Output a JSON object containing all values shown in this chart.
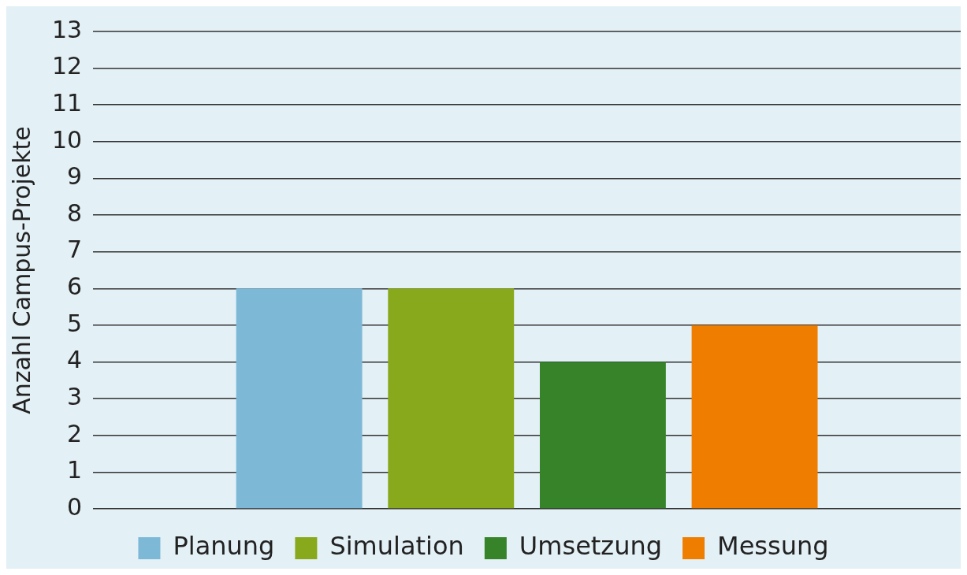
{
  "chart_data": {
    "type": "bar",
    "ylabel": "Anzahl Campus-Projekte",
    "categories": [
      null
    ],
    "series": [
      {
        "name": "Planung",
        "color": "#7db9d7",
        "values": [
          6
        ]
      },
      {
        "name": "Simulation",
        "color": "#88a91b",
        "values": [
          6
        ]
      },
      {
        "name": "Umsetzung",
        "color": "#37832a",
        "values": [
          4
        ]
      },
      {
        "name": "Messung",
        "color": "#ef7d00",
        "values": [
          5
        ]
      }
    ],
    "ylim": [
      0,
      13
    ],
    "yticks": [
      0,
      1,
      2,
      3,
      4,
      5,
      6,
      7,
      8,
      9,
      10,
      11,
      12,
      13
    ],
    "grid": "y",
    "legend": "bottom",
    "tick_labels": "y"
  }
}
